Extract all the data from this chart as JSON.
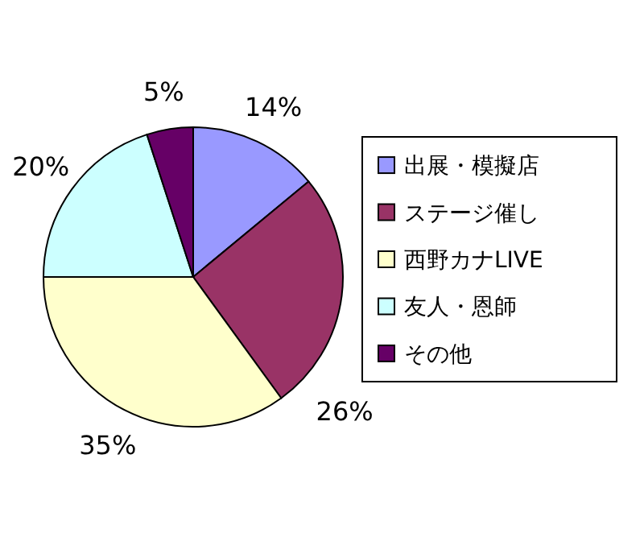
{
  "chart_data": {
    "type": "pie",
    "categories": [
      "出展・模擬店",
      "ステージ催し",
      "西野カナLIVE",
      "友人・恩師",
      "その他"
    ],
    "values": [
      14,
      26,
      35,
      20,
      5
    ],
    "colors": [
      "#9999ff",
      "#993366",
      "#ffffcc",
      "#ccffff",
      "#660066"
    ],
    "value_labels": [
      "14%",
      "26%",
      "35%",
      "20%",
      "5%"
    ],
    "legend": "right"
  }
}
